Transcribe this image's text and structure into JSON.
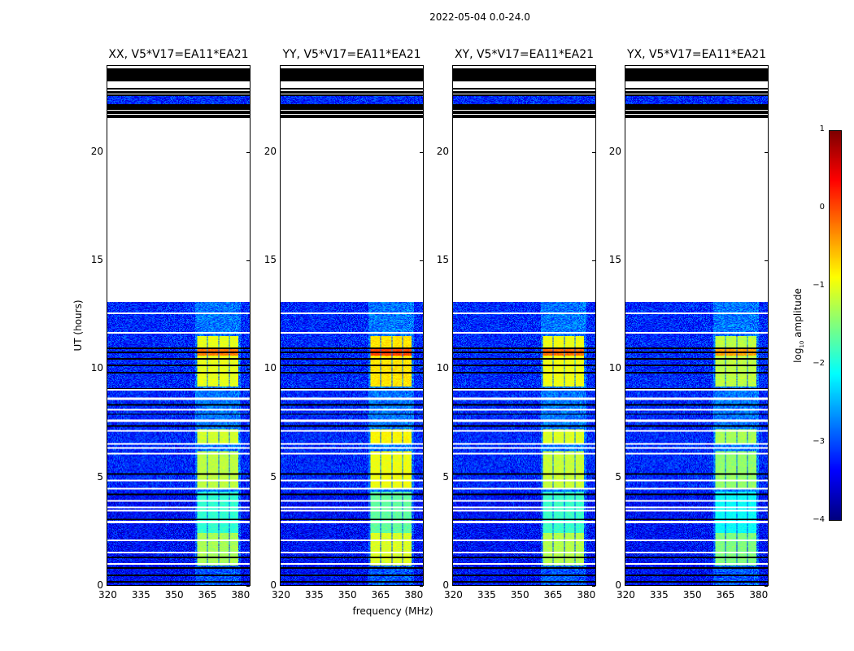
{
  "chart_data": {
    "type": "heatmap",
    "title": "2022-05-04 0.0-24.0",
    "xlabel": "frequency (MHz)",
    "ylabel": "UT (hours)",
    "xlim": [
      320,
      385
    ],
    "ylim": [
      0,
      24
    ],
    "xticks": [
      "320",
      "335",
      "350",
      "365",
      "380"
    ],
    "xtick_values": [
      320,
      335,
      350,
      365,
      380
    ],
    "yticks": [
      "0",
      "5",
      "10",
      "15",
      "20"
    ],
    "ytick_values": [
      0,
      5,
      10,
      15,
      20
    ],
    "panels": [
      {
        "title": "XX, V5*V17=EA11*EA21",
        "gain": 0.0
      },
      {
        "title": "YY, V5*V17=EA11*EA21",
        "gain": 0.25
      },
      {
        "title": "XY, V5*V17=EA11*EA21",
        "gain": 0.05
      },
      {
        "title": "YX, V5*V17=EA11*EA21",
        "gain": -0.2
      }
    ],
    "background_log_amp": -3.2,
    "data_time_ranges": [
      [
        0,
        13.1
      ],
      [
        21.6,
        24
      ]
    ],
    "blank_time_range": [
      13.1,
      21.6
    ],
    "flagged_white_hours": [
      12.57,
      11.67,
      9.04,
      8.6,
      8.1,
      7.6,
      7.13,
      6.53,
      6.34,
      6.08,
      4.84,
      4.47,
      3.9,
      3.6,
      3.45,
      2.9,
      2.06,
      1.5,
      0.97
    ],
    "flagged_black_hours": [
      10.96,
      10.77,
      10.47,
      10.17,
      9.83,
      9.08,
      8.33,
      7.9,
      7.35,
      5.14,
      4.2,
      3.04,
      1.28,
      0.79,
      0.45,
      0.15
    ],
    "rfi_subbands_mhz": [
      [
        361,
        365.5
      ],
      [
        366,
        370.5
      ],
      [
        371,
        375.5
      ],
      [
        376,
        380
      ]
    ],
    "rfi_blocks": [
      {
        "hours": [
          0.9,
          2.4
        ],
        "log_amp": -1.3
      },
      {
        "hours": [
          2.4,
          4.3
        ],
        "log_amp": -1.9
      },
      {
        "hours": [
          4.5,
          6.2
        ],
        "log_amp": -1.2
      },
      {
        "hours": [
          6.5,
          7.2
        ],
        "log_amp": -1.1
      },
      {
        "hours": [
          9.2,
          11.5
        ],
        "log_amp": -1.0
      },
      {
        "hours": [
          10.6,
          11.0
        ],
        "log_amp": -0.2
      }
    ],
    "colorbar": {
      "label": "log10 amplitude",
      "label_main": "log",
      "label_sub": "10",
      "label_rest": " amplitude",
      "range": [
        -4,
        1
      ],
      "ticks": [
        "1",
        "0",
        "−1",
        "−2",
        "−3",
        "−4"
      ],
      "tick_values": [
        1,
        0,
        -1,
        -2,
        -3,
        -4
      ],
      "colormap": "jet"
    }
  }
}
